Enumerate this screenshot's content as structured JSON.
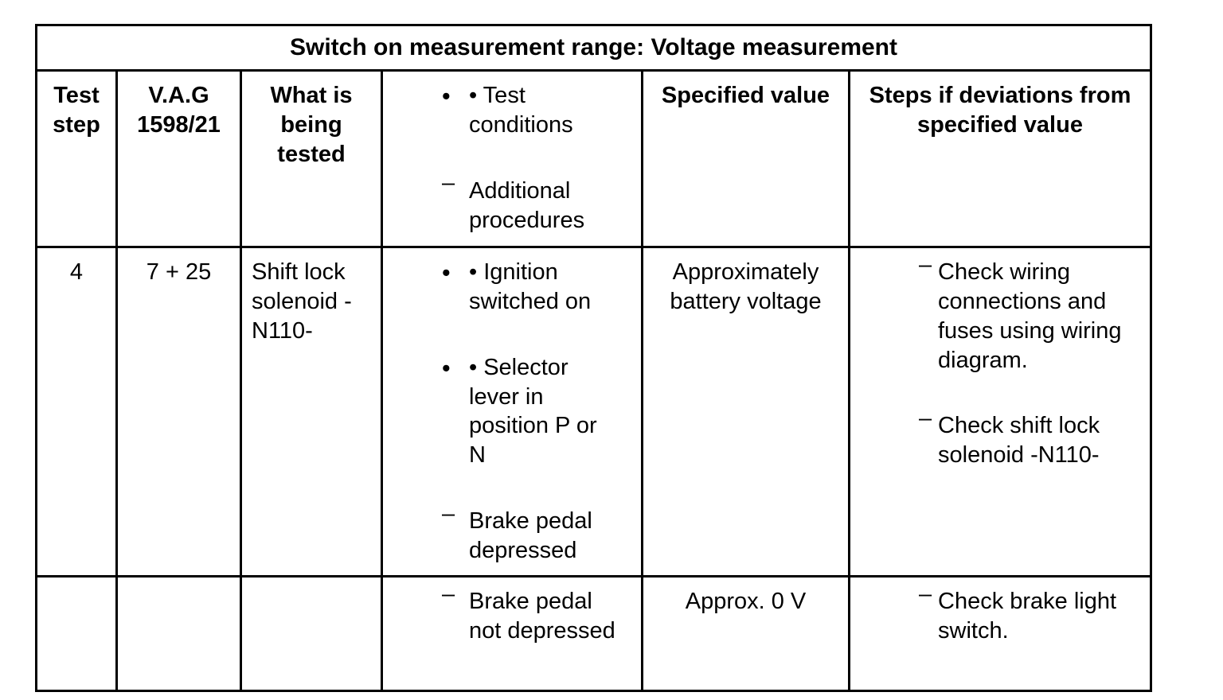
{
  "page": {
    "background": "#ffffff",
    "border_color": "#000000",
    "text_color": "#000000"
  },
  "table": {
    "title": "Switch on measurement range: Voltage measurement",
    "header": {
      "test_step": "Test step",
      "vag": "V.A.G 1598/21",
      "what_tested": "What is being tested",
      "conditions_items": [
        {
          "marker": "bullet",
          "text": "• Test conditions"
        },
        {
          "marker": "dash",
          "text": "Additional procedures"
        }
      ],
      "specified_value": "Specified value",
      "steps": "Steps if deviations from specified value"
    },
    "rows": [
      {
        "test_step": "4",
        "vag": "7 + 25",
        "tested": "Shift lock solenoid - N110-",
        "conditions_items": [
          {
            "marker": "bullet",
            "text": "• Ignition switched on"
          },
          {
            "marker": "bullet",
            "text": "• Selector lever in position P or N"
          },
          {
            "marker": "dash",
            "text": "Brake pedal depressed"
          }
        ],
        "specified_value": "Approximately battery voltage",
        "steps_items": [
          {
            "marker": "dash",
            "text": "Check wiring connections and fuses using wiring diagram."
          },
          {
            "marker": "dash",
            "text": "Check shift lock solenoid -N110-"
          }
        ]
      },
      {
        "test_step": "",
        "vag": "",
        "tested": "",
        "conditions_items": [
          {
            "marker": "dash",
            "text": "Brake pedal not depressed"
          }
        ],
        "specified_value": "Approx. 0 V",
        "steps_items": [
          {
            "marker": "dash",
            "text": "Check brake light switch."
          }
        ]
      }
    ]
  }
}
